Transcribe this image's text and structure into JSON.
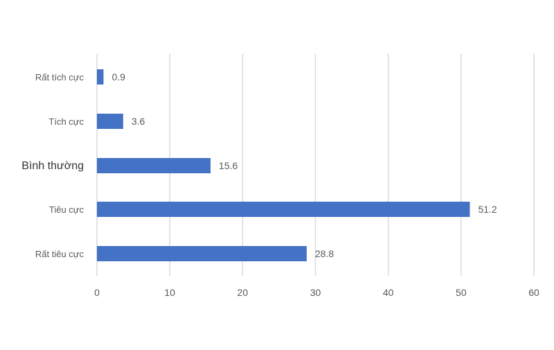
{
  "chart_data": {
    "type": "bar",
    "orientation": "horizontal",
    "categories": [
      "Rất tích cực",
      "Tích cực",
      "Bình thường",
      "Tiêu cực",
      "Rất tiêu cực"
    ],
    "values": [
      0.9,
      3.6,
      15.6,
      51.2,
      28.8
    ],
    "value_labels": [
      "0.9",
      "3.6",
      "15.6",
      "51.2",
      "28.8"
    ],
    "x_ticks": [
      0,
      10,
      20,
      30,
      40,
      50,
      60
    ],
    "xlim": [
      0,
      60
    ],
    "grid": true,
    "legend": "none",
    "bar_color": "#4472C4",
    "grid_color": "#d9d9d9",
    "text_color": "#595959"
  }
}
